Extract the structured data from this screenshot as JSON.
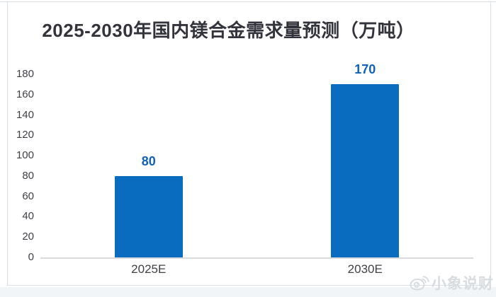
{
  "page": {
    "watermark": {
      "text": "小象说财",
      "icon": "weibo-icon"
    }
  },
  "chart_data": {
    "type": "bar",
    "title": "2025-2030年国内镁合金需求量预测（万吨）",
    "categories": [
      "2025E",
      "2030E"
    ],
    "values": [
      80,
      170
    ],
    "value_labels": [
      "80",
      "170"
    ],
    "xlabel": "",
    "ylabel": "",
    "ylim": [
      0,
      180
    ],
    "ytick_step": 20,
    "yticks": [
      0,
      20,
      40,
      60,
      80,
      100,
      120,
      140,
      160,
      180
    ],
    "grid": false,
    "legend": "none",
    "colors": {
      "bar": "#0a6cbe",
      "value_label": "#1061ba",
      "title": "#33333b",
      "tick_label": "#3f3f46",
      "axis_line": "#d8dade"
    }
  }
}
